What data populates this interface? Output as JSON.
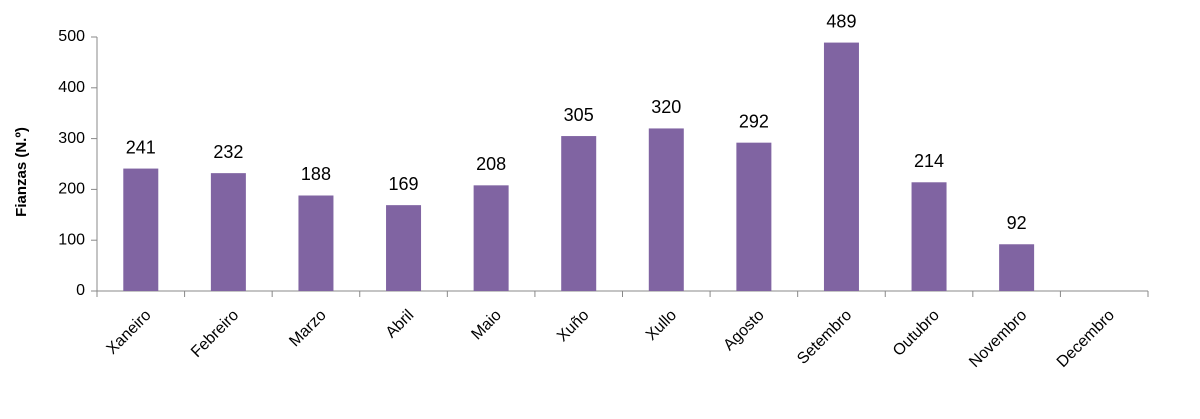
{
  "chart_data": {
    "type": "bar",
    "y_label": "Fianzas (N.º)",
    "categories": [
      "Xaneiro",
      "Febreiro",
      "Marzo",
      "Abril",
      "Maio",
      "Xuño",
      "Xullo",
      "Agosto",
      "Setembro",
      "Outubro",
      "Novembro",
      "Decembro"
    ],
    "values": [
      241,
      232,
      188,
      169,
      208,
      305,
      320,
      292,
      489,
      214,
      92,
      null
    ],
    "color": "#8064a2",
    "ylim": [
      0,
      500
    ],
    "yticks": [
      0,
      100,
      200,
      300,
      400,
      500
    ],
    "grid": false
  }
}
